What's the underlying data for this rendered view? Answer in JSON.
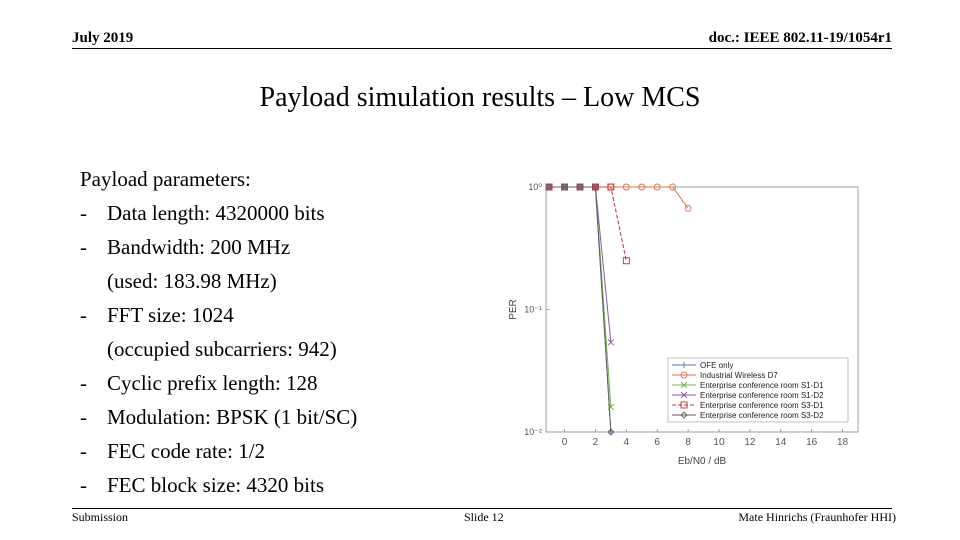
{
  "header": {
    "date": "July 2019",
    "doc": "doc.: IEEE 802.11-19/1054r1"
  },
  "title": "Payload simulation results – Low MCS",
  "body": {
    "heading": "Payload parameters:",
    "items": [
      {
        "text": "Data length: 4320000 bits"
      },
      {
        "text": "Bandwidth: 200 MHz",
        "note": "(used: 183.98 MHz)"
      },
      {
        "text": "FFT size: 1024",
        "note": "(occupied subcarriers: 942)"
      },
      {
        "text": "Cyclic prefix length: 128"
      },
      {
        "text": "Modulation: BPSK (1 bit/SC)"
      },
      {
        "text": "FEC code rate: 1/2"
      },
      {
        "text": "FEC block size: 4320 bits"
      }
    ]
  },
  "chart_data": {
    "type": "line",
    "xlabel": "Eb/N0 / dB",
    "ylabel": "PER",
    "xlim": [
      -1.2,
      19
    ],
    "xticks": [
      0,
      2,
      4,
      6,
      8,
      10,
      12,
      14,
      16,
      18
    ],
    "ylim": [
      0.01,
      1
    ],
    "log_y": true,
    "yticks": [
      {
        "value": 1,
        "label": "10⁰"
      },
      {
        "value": 0.1,
        "label": "10⁻¹"
      },
      {
        "value": 0.01,
        "label": "10⁻²"
      }
    ],
    "grid": false,
    "legend": "lower right",
    "series": [
      {
        "name": "OFE only",
        "color": "#4a78b8",
        "marker": "plus",
        "x": [
          -1,
          0,
          1,
          2,
          3
        ],
        "values": [
          1,
          1,
          1,
          1,
          0.01
        ]
      },
      {
        "name": "Industrial Wireless D7",
        "color": "#e0704a",
        "marker": "circle",
        "x": [
          -1,
          0,
          1,
          2,
          3,
          4,
          5,
          6,
          7,
          8
        ],
        "values": [
          1,
          1,
          1,
          1,
          1,
          1,
          1,
          1,
          1,
          0.67
        ]
      },
      {
        "name": "Enterprise conference room S1-D1",
        "color": "#78b048",
        "marker": "x",
        "x": [
          -1,
          0,
          1,
          2,
          3
        ],
        "values": [
          1,
          1,
          1,
          1,
          0.016
        ]
      },
      {
        "name": "Enterprise conference room S1-D2",
        "color": "#8a5aa0",
        "marker": "x",
        "x": [
          -1,
          0,
          1,
          2,
          3
        ],
        "values": [
          1,
          1,
          1,
          1,
          0.054
        ]
      },
      {
        "name": "Enterprise conference room S3-D1",
        "color": "#c03030",
        "marker": "square",
        "dashed": true,
        "x": [
          -1,
          0,
          1,
          2,
          3,
          4
        ],
        "values": [
          1,
          1,
          1,
          1,
          1,
          0.25
        ]
      },
      {
        "name": "Enterprise conference room S3-D2",
        "color": "#606060",
        "marker": "diamond",
        "x": [
          -1,
          0,
          1,
          2,
          3
        ],
        "values": [
          1,
          1,
          1,
          1,
          0.01
        ]
      }
    ]
  },
  "footer": {
    "left": "Submission",
    "center": "Slide 12",
    "right": "Mate Hinrichs (Fraunhofer HHI)"
  }
}
